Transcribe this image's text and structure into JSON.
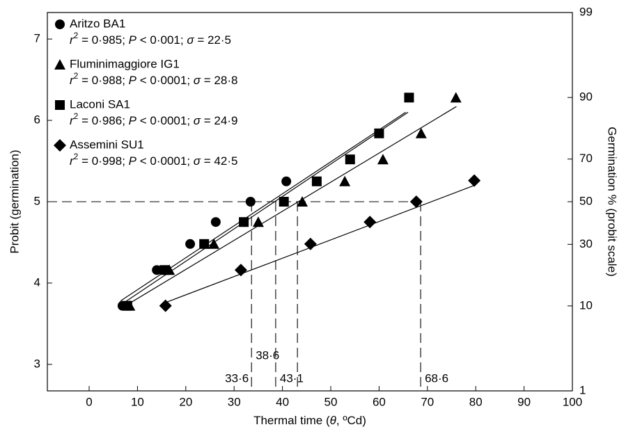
{
  "chart_data": {
    "type": "scatter",
    "xlabel": [
      {
        "text": "Thermal time ("
      },
      {
        "text": "θ",
        "italic": true
      },
      {
        "text": ", ºCd)"
      }
    ],
    "ylabel": "Probit (germination)",
    "y2label": "Germination % (probit scale)",
    "xlim": [
      -8.65,
      100
    ],
    "xticks": [
      0,
      10,
      20,
      30,
      40,
      50,
      60,
      70,
      80,
      90,
      100
    ],
    "ylim": [
      2.674,
      7.326
    ],
    "yticks": [
      3,
      4,
      5,
      6,
      7
    ],
    "y2lim": [
      1,
      99
    ],
    "y2scale": "probit",
    "y2ticks": [
      1,
      10,
      30,
      50,
      70,
      90,
      99
    ],
    "color": "#000000",
    "series": [
      {
        "name": "Aritzo BA1",
        "marker": "circle",
        "stats": [
          {
            "text": "r",
            "italic": true
          },
          {
            "text": "2",
            "sup": true
          },
          {
            "text": " = 0·985; "
          },
          {
            "text": "P",
            "italic": true
          },
          {
            "text": " < 0·001; "
          },
          {
            "text": "σ",
            "italic": true
          },
          {
            "text": " = 22·5"
          }
        ],
        "x": [
          6.9,
          14.0,
          20.9,
          26.2,
          33.4,
          40.8
        ],
        "values": [
          3.72,
          4.16,
          4.48,
          4.75,
          5.0,
          5.25
        ],
        "fit": {
          "x": [
            6.5,
            65.5
          ],
          "y": [
            3.78,
            6.1
          ]
        }
      },
      {
        "name": "Fluminimaggiore IG1",
        "marker": "triangle",
        "stats": [
          {
            "text": "r",
            "italic": true
          },
          {
            "text": "2",
            "sup": true
          },
          {
            "text": " = 0·988; "
          },
          {
            "text": "P",
            "italic": true
          },
          {
            "text": " < 0·0001; "
          },
          {
            "text": "σ",
            "italic": true
          },
          {
            "text": " = 28·8"
          }
        ],
        "x": [
          8.4,
          16.6,
          25.8,
          35.0,
          44.1,
          52.9,
          60.8,
          68.7,
          75.9
        ],
        "values": [
          3.72,
          4.16,
          4.48,
          4.75,
          5.0,
          5.25,
          5.52,
          5.84,
          6.28
        ],
        "fit": {
          "x": [
            7.5,
            76.0
          ],
          "y": [
            3.72,
            6.17
          ]
        }
      },
      {
        "name": "Laconi SA1",
        "marker": "square",
        "stats": [
          {
            "text": "r",
            "italic": true
          },
          {
            "text": "2",
            "sup": true
          },
          {
            "text": " = 0·986; "
          },
          {
            "text": "P",
            "italic": true
          },
          {
            "text": " < 0·0001; "
          },
          {
            "text": "σ",
            "italic": true
          },
          {
            "text": " = 24·9"
          }
        ],
        "x": [
          7.9,
          15.6,
          23.8,
          32.0,
          40.3,
          47.1,
          54.0,
          60.0,
          66.2
        ],
        "values": [
          3.72,
          4.16,
          4.48,
          4.75,
          5.0,
          5.25,
          5.52,
          5.84,
          6.28
        ],
        "fit": {
          "x": [
            7.0,
            66.0
          ],
          "y": [
            3.75,
            6.1
          ]
        }
      },
      {
        "name": "Assemini SU1",
        "marker": "diamond",
        "stats": [
          {
            "text": "r",
            "italic": true
          },
          {
            "text": "2",
            "sup": true
          },
          {
            "text": " = 0·998; "
          },
          {
            "text": "P",
            "italic": true
          },
          {
            "text": " < 0·0001; "
          },
          {
            "text": "σ",
            "italic": true
          },
          {
            "text": " = 42·5"
          }
        ],
        "x": [
          15.8,
          31.4,
          45.8,
          58.1,
          67.7,
          79.7
        ],
        "values": [
          3.72,
          4.16,
          4.48,
          4.75,
          5.0,
          5.26
        ],
        "fit": {
          "x": [
            15.8,
            79.7
          ],
          "y": [
            3.76,
            5.2
          ]
        }
      }
    ],
    "reference": {
      "y": 5,
      "x": [
        {
          "value": 33.6,
          "label": "33·6"
        },
        {
          "value": 38.6,
          "label": "38·6"
        },
        {
          "value": 43.1,
          "label": "43·1"
        },
        {
          "value": 68.6,
          "label": "68·6"
        }
      ]
    }
  }
}
